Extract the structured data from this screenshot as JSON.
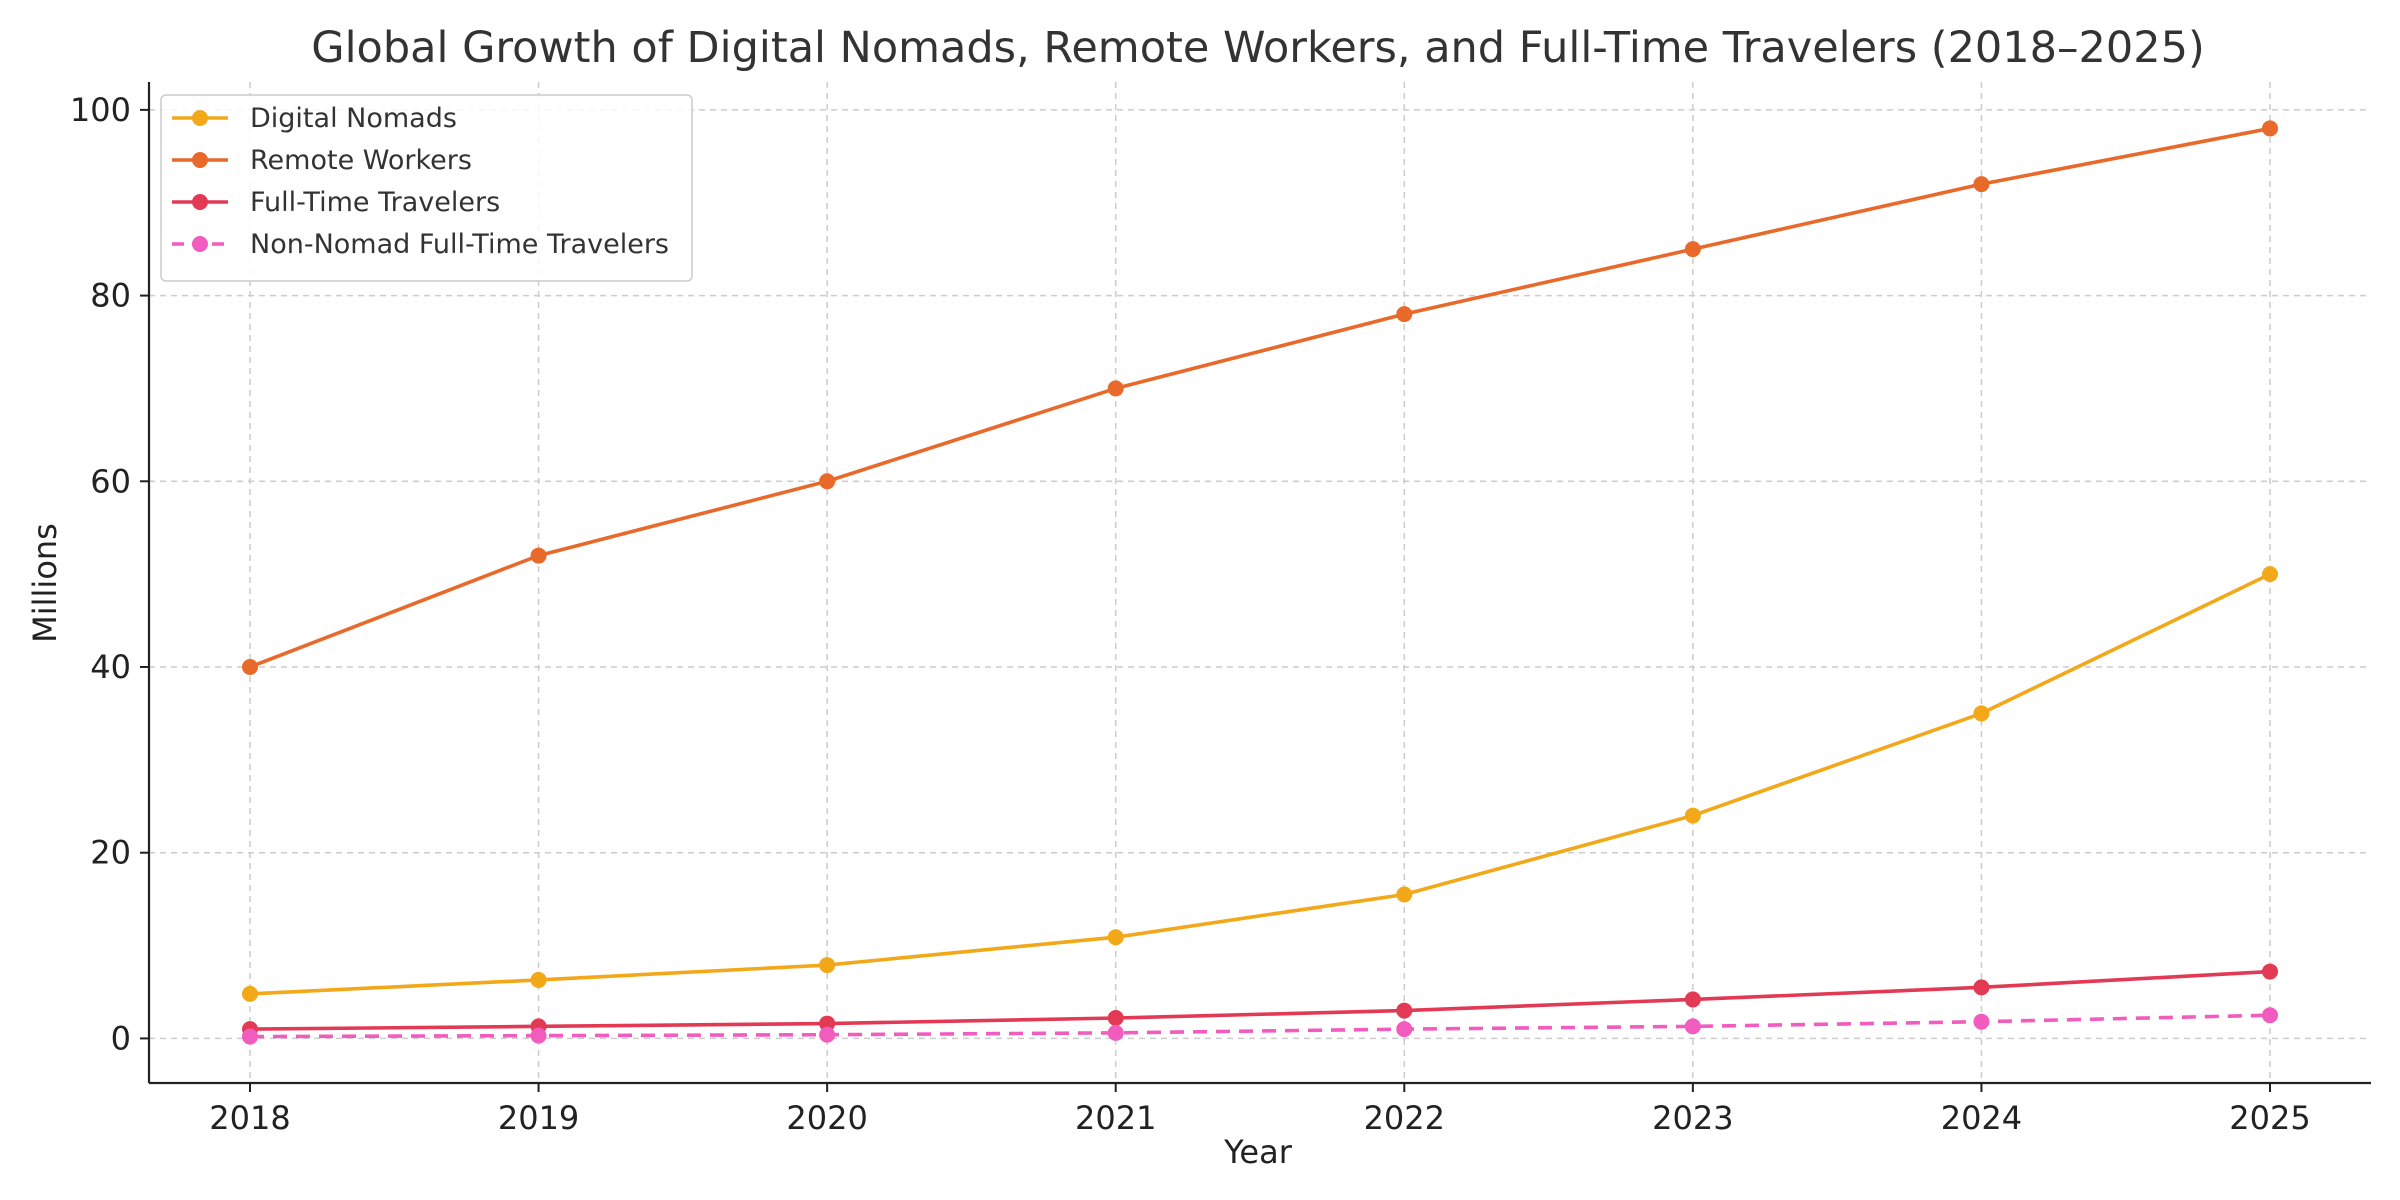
{
  "chart_data": {
    "type": "line",
    "title": "Global Growth of Digital Nomads, Remote Workers, and Full-Time Travelers (2018–2025)",
    "xlabel": "Year",
    "ylabel": "Millions",
    "x": [
      2018,
      2019,
      2020,
      2021,
      2022,
      2023,
      2024,
      2025
    ],
    "x_tick_labels": [
      "2018",
      "2019",
      "2020",
      "2021",
      "2022",
      "2023",
      "2024",
      "2025"
    ],
    "y_ticks": [
      0,
      20,
      40,
      60,
      80,
      100
    ],
    "y_tick_labels": [
      "0",
      "20",
      "40",
      "60",
      "80",
      "100"
    ],
    "xlim": [
      2017.65,
      2025.35
    ],
    "ylim": [
      -4.8,
      103
    ],
    "grid": true,
    "legend_position": "top-left",
    "series": [
      {
        "name": "Digital Nomads",
        "color": "#f2a818",
        "style": "solid",
        "values": [
          4.8,
          6.3,
          7.9,
          10.9,
          15.5,
          24,
          35,
          50
        ]
      },
      {
        "name": "Remote Workers",
        "color": "#e8692a",
        "style": "solid",
        "values": [
          40,
          52,
          60,
          70,
          78,
          85,
          92,
          98
        ]
      },
      {
        "name": "Full-Time Travelers",
        "color": "#e23a55",
        "style": "solid",
        "values": [
          1,
          1.3,
          1.6,
          2.2,
          3.0,
          4.2,
          5.5,
          7.2
        ]
      },
      {
        "name": "Non-Nomad Full-Time Travelers",
        "color": "#f25cbf",
        "style": "dashed",
        "values": [
          0.2,
          0.3,
          0.4,
          0.6,
          1.0,
          1.3,
          1.8,
          2.5
        ]
      }
    ]
  }
}
